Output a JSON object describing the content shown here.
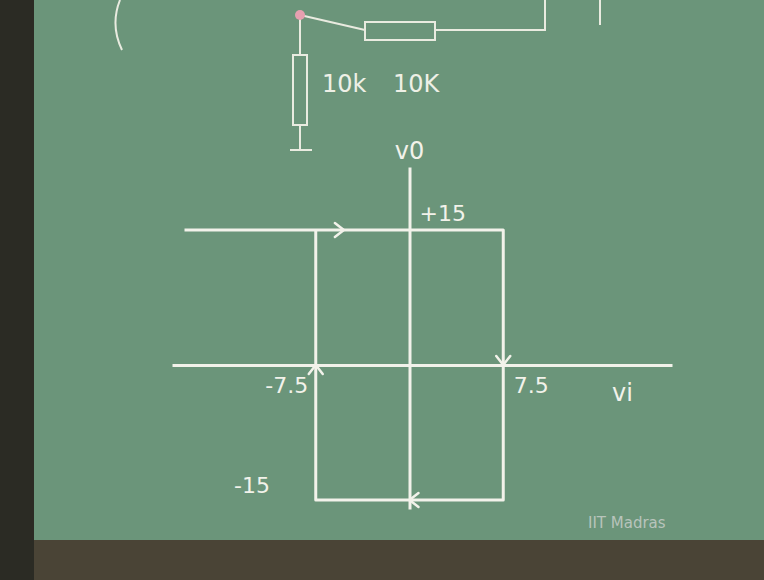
{
  "chart_data": {
    "type": "line",
    "x_label": "vi",
    "y_label": "v0",
    "x": [
      -18,
      7.5,
      7.5,
      -7.5,
      -7.5
    ],
    "values": [
      15,
      15,
      -15,
      -15,
      15
    ],
    "color": "#f2f2ea",
    "xlim": [
      -19,
      21
    ],
    "ylim": [
      -16,
      22
    ],
    "xticks": [
      -7.5,
      7.5
    ],
    "yticks": [
      {
        "value": 15,
        "label": "+15"
      },
      -15
    ],
    "grid": false,
    "annotations": [
      {
        "text": "10k"
      },
      {
        "text": "10K"
      },
      {
        "text": "IIT Madras"
      }
    ]
  }
}
